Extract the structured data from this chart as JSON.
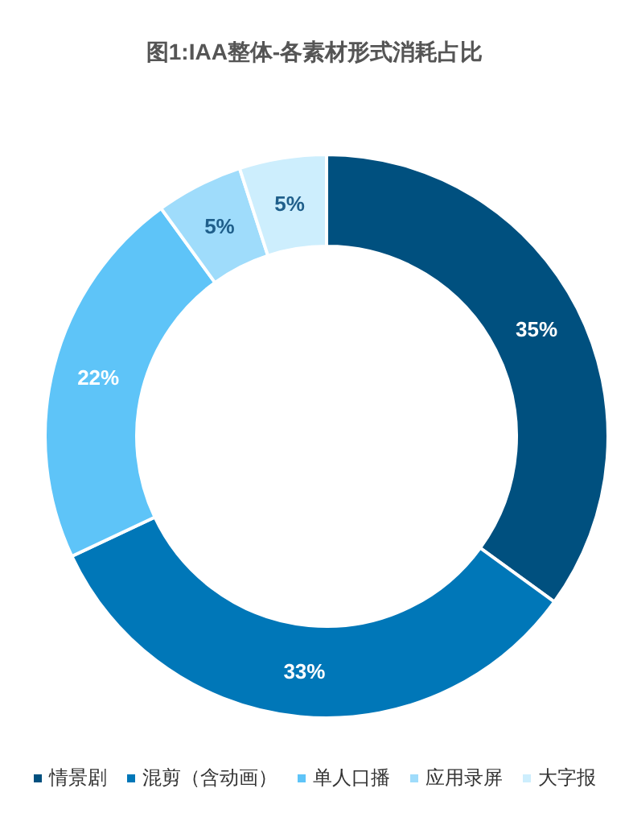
{
  "chart_data": {
    "type": "donut",
    "title": "图1:IAA整体-各素材形式消耗占比",
    "categories": [
      "情景剧",
      "混剪（含动画）",
      "单人口播",
      "应用录屏",
      "大字报"
    ],
    "values": [
      35,
      33,
      22,
      5,
      5
    ],
    "value_labels": [
      "35%",
      "33%",
      "22%",
      "5%",
      "5%"
    ],
    "colors": [
      "#00507f",
      "#0077b8",
      "#5ec4f8",
      "#9fdcfb",
      "#cdeefd"
    ],
    "legend": "bottom"
  }
}
